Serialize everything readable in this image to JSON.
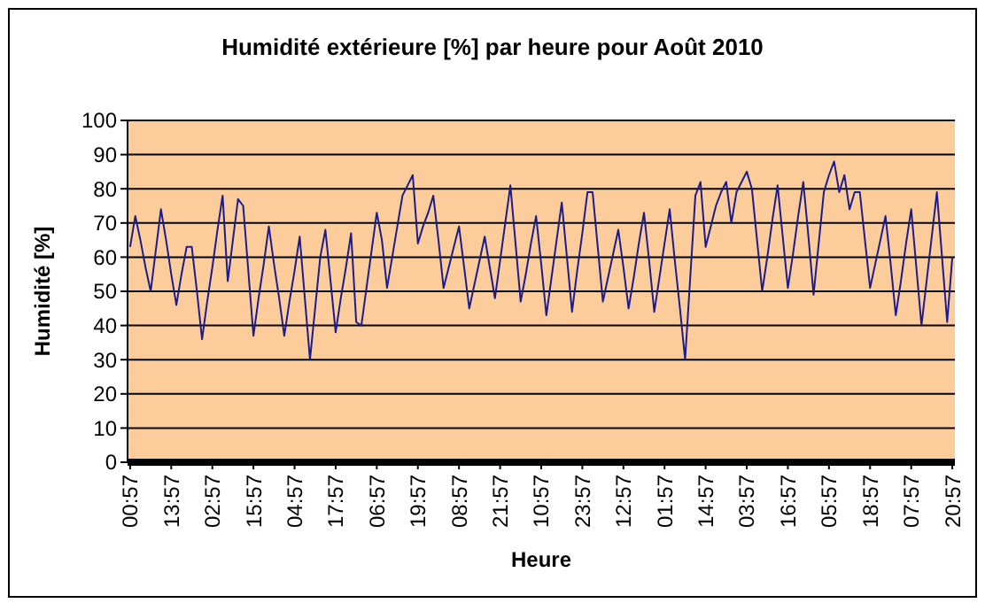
{
  "chart_data": {
    "type": "line",
    "title": "Humidité extérieure [%] par heure pour Août 2010",
    "xlabel": "Heure",
    "ylabel": "Humidité [%]",
    "categories": [
      "00:57",
      null,
      null,
      null,
      null,
      null,
      null,
      null,
      "13:57",
      null,
      null,
      null,
      null,
      null,
      null,
      null,
      "02:57",
      null,
      null,
      null,
      null,
      null,
      null,
      null,
      "15:57",
      null,
      null,
      null,
      null,
      null,
      null,
      null,
      "04:57",
      null,
      null,
      null,
      null,
      null,
      null,
      null,
      "17:57",
      null,
      null,
      null,
      null,
      null,
      null,
      null,
      "06:57",
      null,
      null,
      null,
      null,
      null,
      null,
      null,
      "19:57",
      null,
      null,
      null,
      null,
      null,
      null,
      null,
      "08:57",
      null,
      null,
      null,
      null,
      null,
      null,
      null,
      "21:57",
      null,
      null,
      null,
      null,
      null,
      null,
      null,
      "10:57",
      null,
      null,
      null,
      null,
      null,
      null,
      null,
      "23:57",
      null,
      null,
      null,
      null,
      null,
      null,
      null,
      "12:57",
      null,
      null,
      null,
      null,
      null,
      null,
      null,
      "01:57",
      null,
      null,
      null,
      null,
      null,
      null,
      null,
      "14:57",
      null,
      null,
      null,
      null,
      null,
      null,
      null,
      "03:57",
      null,
      null,
      null,
      null,
      null,
      null,
      null,
      "16:57",
      null,
      null,
      null,
      null,
      null,
      null,
      null,
      "05:57",
      null,
      null,
      null,
      null,
      null,
      null,
      null,
      "18:57",
      null,
      null,
      null,
      null,
      null,
      null,
      null,
      "07:57",
      null,
      null,
      null,
      null,
      null,
      null,
      null,
      "20:57"
    ],
    "series": [
      {
        "color": "#1c1c8a",
        "values": [
          63,
          72,
          65,
          57,
          50,
          62,
          74,
          65,
          55,
          46,
          55,
          63,
          63,
          50,
          36,
          47,
          57,
          68,
          78,
          53,
          65,
          77,
          75,
          56,
          37,
          48,
          58,
          69,
          58,
          48,
          37,
          47,
          56,
          66,
          48,
          30,
          45,
          60,
          68,
          53,
          38,
          48,
          57,
          67,
          41,
          40,
          51,
          62,
          73,
          65,
          51,
          60,
          69,
          78,
          81,
          84,
          64,
          69,
          73,
          78,
          65,
          51,
          57,
          63,
          69,
          57,
          45,
          52,
          59,
          66,
          57,
          48,
          59,
          70,
          81,
          64,
          47,
          55,
          64,
          72,
          58,
          43,
          54,
          65,
          76,
          60,
          44,
          56,
          67,
          79,
          79,
          63,
          47,
          54,
          61,
          68,
          57,
          45,
          54,
          64,
          73,
          59,
          44,
          54,
          64,
          74,
          59,
          45,
          30,
          54,
          78,
          82,
          63,
          69,
          75,
          79,
          82,
          70,
          79,
          82,
          85,
          80,
          65,
          50,
          60,
          71,
          81,
          66,
          51,
          61,
          72,
          82,
          66,
          49,
          64,
          79,
          84,
          88,
          79,
          84,
          74,
          79,
          79,
          65,
          51,
          58,
          65,
          72,
          58,
          43,
          53,
          64,
          74,
          57,
          40,
          53,
          66,
          79,
          60,
          41,
          60
        ]
      }
    ],
    "ylim": [
      0,
      100
    ],
    "yticks": [
      0,
      10,
      20,
      30,
      40,
      50,
      60,
      70,
      80,
      90,
      100
    ],
    "grid": "y",
    "marker": "none",
    "line_style": "solid"
  }
}
